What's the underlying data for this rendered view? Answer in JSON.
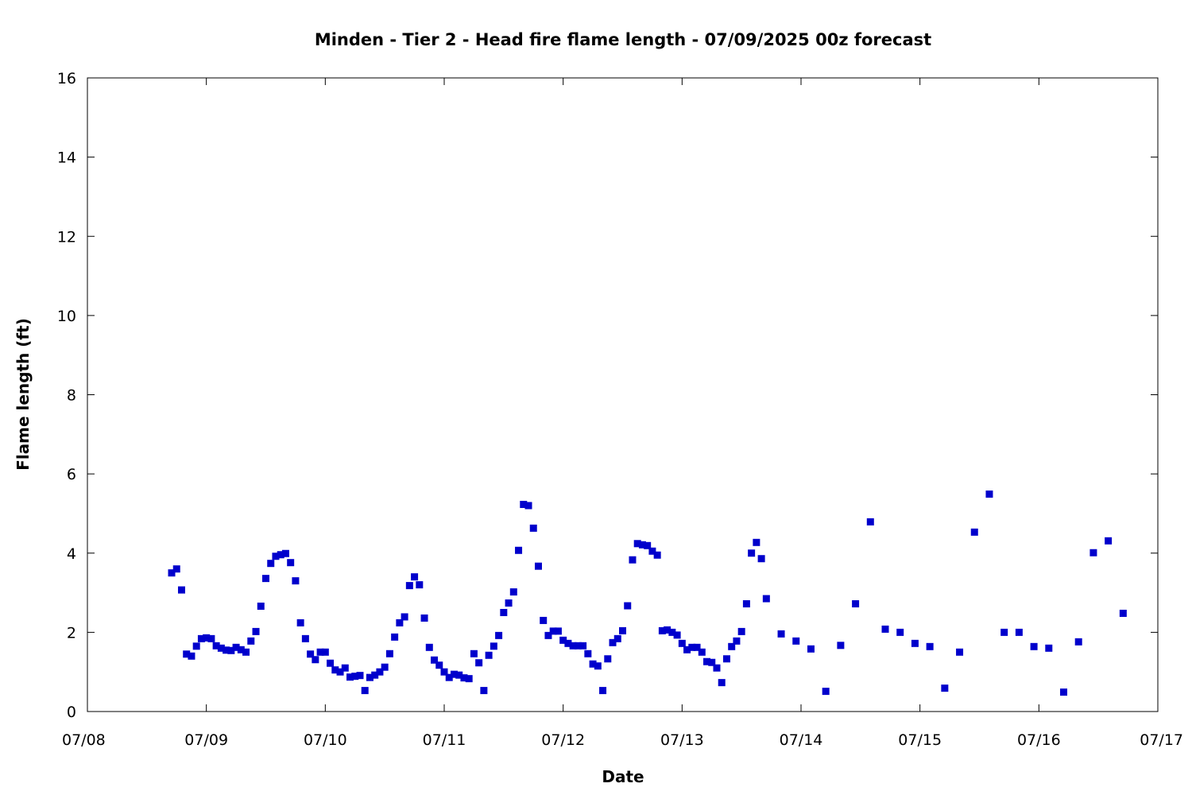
{
  "chart_data": {
    "type": "scatter",
    "title": "Minden - Tier 2 - Head fire flame length - 07/09/2025 00z forecast",
    "xlabel": "Date",
    "ylabel": "Flame length (ft)",
    "xlim": [
      "07/08 00:00",
      "07/17 00:00"
    ],
    "ylim": [
      0,
      16
    ],
    "x_ticks": [
      "07/08",
      "07/09",
      "07/10",
      "07/11",
      "07/12",
      "07/13",
      "07/14",
      "07/15",
      "07/16",
      "07/17"
    ],
    "y_ticks": [
      "0",
      "2",
      "4",
      "6",
      "8",
      "10",
      "12",
      "14",
      "16"
    ],
    "grid": false,
    "marker_color": "#0000cc",
    "points": [
      [
        "07/08 17:00",
        3.5
      ],
      [
        "07/08 18:00",
        3.6
      ],
      [
        "07/08 19:00",
        3.07
      ],
      [
        "07/08 20:00",
        1.45
      ],
      [
        "07/08 21:00",
        1.4
      ],
      [
        "07/08 22:00",
        1.65
      ],
      [
        "07/08 23:00",
        1.84
      ],
      [
        "07/09 00:00",
        1.86
      ],
      [
        "07/09 01:00",
        1.84
      ],
      [
        "07/09 02:00",
        1.66
      ],
      [
        "07/09 03:00",
        1.6
      ],
      [
        "07/09 04:00",
        1.55
      ],
      [
        "07/09 05:00",
        1.54
      ],
      [
        "07/09 06:00",
        1.62
      ],
      [
        "07/09 07:00",
        1.56
      ],
      [
        "07/09 08:00",
        1.5
      ],
      [
        "07/09 09:00",
        1.78
      ],
      [
        "07/09 10:00",
        2.02
      ],
      [
        "07/09 11:00",
        2.66
      ],
      [
        "07/09 12:00",
        3.36
      ],
      [
        "07/09 13:00",
        3.74
      ],
      [
        "07/09 14:00",
        3.92
      ],
      [
        "07/09 15:00",
        3.96
      ],
      [
        "07/09 16:00",
        3.99
      ],
      [
        "07/09 17:00",
        3.76
      ],
      [
        "07/09 18:00",
        3.3
      ],
      [
        "07/09 19:00",
        2.24
      ],
      [
        "07/09 20:00",
        1.84
      ],
      [
        "07/09 21:00",
        1.45
      ],
      [
        "07/09 22:00",
        1.31
      ],
      [
        "07/09 23:00",
        1.5
      ],
      [
        "07/10 00:00",
        1.5
      ],
      [
        "07/10 01:00",
        1.22
      ],
      [
        "07/10 02:00",
        1.05
      ],
      [
        "07/10 03:00",
        1.0
      ],
      [
        "07/10 04:00",
        1.1
      ],
      [
        "07/10 05:00",
        0.87
      ],
      [
        "07/10 06:00",
        0.89
      ],
      [
        "07/10 07:00",
        0.91
      ],
      [
        "07/10 08:00",
        0.53
      ],
      [
        "07/10 09:00",
        0.86
      ],
      [
        "07/10 10:00",
        0.92
      ],
      [
        "07/10 11:00",
        1.0
      ],
      [
        "07/10 12:00",
        1.12
      ],
      [
        "07/10 13:00",
        1.46
      ],
      [
        "07/10 14:00",
        1.88
      ],
      [
        "07/10 15:00",
        2.24
      ],
      [
        "07/10 16:00",
        2.39
      ],
      [
        "07/10 17:00",
        3.18
      ],
      [
        "07/10 18:00",
        3.4
      ],
      [
        "07/10 19:00",
        3.2
      ],
      [
        "07/10 20:00",
        2.36
      ],
      [
        "07/10 21:00",
        1.62
      ],
      [
        "07/10 22:00",
        1.3
      ],
      [
        "07/10 23:00",
        1.17
      ],
      [
        "07/11 00:00",
        1.0
      ],
      [
        "07/11 01:00",
        0.86
      ],
      [
        "07/11 02:00",
        0.94
      ],
      [
        "07/11 03:00",
        0.92
      ],
      [
        "07/11 04:00",
        0.85
      ],
      [
        "07/11 05:00",
        0.83
      ],
      [
        "07/11 06:00",
        1.46
      ],
      [
        "07/11 07:00",
        1.23
      ],
      [
        "07/11 08:00",
        0.53
      ],
      [
        "07/11 09:00",
        1.42
      ],
      [
        "07/11 10:00",
        1.65
      ],
      [
        "07/11 11:00",
        1.92
      ],
      [
        "07/11 12:00",
        2.5
      ],
      [
        "07/11 13:00",
        2.74
      ],
      [
        "07/11 14:00",
        3.02
      ],
      [
        "07/11 15:00",
        4.07
      ],
      [
        "07/11 16:00",
        5.23
      ],
      [
        "07/11 17:00",
        5.2
      ],
      [
        "07/11 18:00",
        4.63
      ],
      [
        "07/11 19:00",
        3.67
      ],
      [
        "07/11 20:00",
        2.3
      ],
      [
        "07/11 21:00",
        1.92
      ],
      [
        "07/11 22:00",
        2.03
      ],
      [
        "07/11 23:00",
        2.03
      ],
      [
        "07/12 00:00",
        1.8
      ],
      [
        "07/12 01:00",
        1.72
      ],
      [
        "07/12 02:00",
        1.66
      ],
      [
        "07/12 03:00",
        1.66
      ],
      [
        "07/12 04:00",
        1.66
      ],
      [
        "07/12 05:00",
        1.46
      ],
      [
        "07/12 06:00",
        1.2
      ],
      [
        "07/12 07:00",
        1.15
      ],
      [
        "07/12 08:00",
        0.53
      ],
      [
        "07/12 09:00",
        1.33
      ],
      [
        "07/12 10:00",
        1.74
      ],
      [
        "07/12 11:00",
        1.84
      ],
      [
        "07/12 12:00",
        2.04
      ],
      [
        "07/12 13:00",
        2.67
      ],
      [
        "07/12 14:00",
        3.83
      ],
      [
        "07/12 15:00",
        4.24
      ],
      [
        "07/12 16:00",
        4.21
      ],
      [
        "07/12 17:00",
        4.19
      ],
      [
        "07/12 18:00",
        4.05
      ],
      [
        "07/12 19:00",
        3.95
      ],
      [
        "07/12 20:00",
        2.04
      ],
      [
        "07/12 21:00",
        2.06
      ],
      [
        "07/12 22:00",
        2.0
      ],
      [
        "07/12 23:00",
        1.93
      ],
      [
        "07/13 00:00",
        1.72
      ],
      [
        "07/13 01:00",
        1.56
      ],
      [
        "07/13 02:00",
        1.62
      ],
      [
        "07/13 03:00",
        1.62
      ],
      [
        "07/13 04:00",
        1.5
      ],
      [
        "07/13 05:00",
        1.26
      ],
      [
        "07/13 06:00",
        1.24
      ],
      [
        "07/13 07:00",
        1.1
      ],
      [
        "07/13 08:00",
        0.73
      ],
      [
        "07/13 09:00",
        1.33
      ],
      [
        "07/13 10:00",
        1.64
      ],
      [
        "07/13 11:00",
        1.78
      ],
      [
        "07/13 12:00",
        2.02
      ],
      [
        "07/13 13:00",
        2.72
      ],
      [
        "07/13 14:00",
        4.0
      ],
      [
        "07/13 15:00",
        4.27
      ],
      [
        "07/13 16:00",
        3.86
      ],
      [
        "07/13 17:00",
        2.85
      ],
      [
        "07/13 20:00",
        1.96
      ],
      [
        "07/13 23:00",
        1.78
      ],
      [
        "07/14 02:00",
        1.58
      ],
      [
        "07/14 05:00",
        0.51
      ],
      [
        "07/14 08:00",
        1.67
      ],
      [
        "07/14 11:00",
        2.72
      ],
      [
        "07/14 14:00",
        4.79
      ],
      [
        "07/14 17:00",
        2.08
      ],
      [
        "07/14 20:00",
        2.0
      ],
      [
        "07/14 23:00",
        1.72
      ],
      [
        "07/15 02:00",
        1.64
      ],
      [
        "07/15 05:00",
        0.59
      ],
      [
        "07/15 08:00",
        1.5
      ],
      [
        "07/15 11:00",
        4.53
      ],
      [
        "07/15 14:00",
        5.49
      ],
      [
        "07/15 17:00",
        2.0
      ],
      [
        "07/15 20:00",
        2.0
      ],
      [
        "07/15 23:00",
        1.64
      ],
      [
        "07/16 02:00",
        1.6
      ],
      [
        "07/16 05:00",
        0.49
      ],
      [
        "07/16 08:00",
        1.76
      ],
      [
        "07/16 11:00",
        4.01
      ],
      [
        "07/16 14:00",
        4.31
      ],
      [
        "07/16 17:00",
        2.48
      ]
    ]
  }
}
